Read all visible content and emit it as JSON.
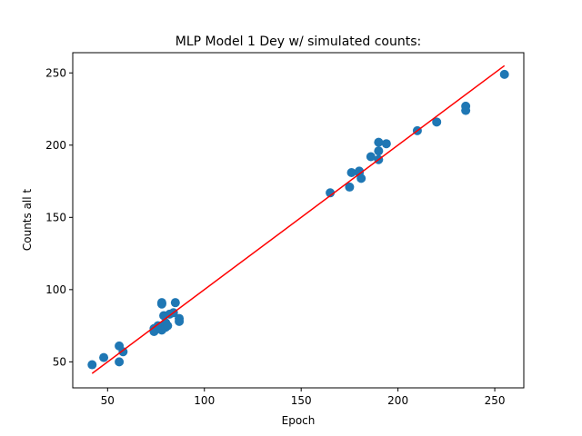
{
  "chart_data": {
    "type": "scatter",
    "title": "MLP Model 1 Dey w/ simulated counts:",
    "xlabel": "Epoch",
    "ylabel": "Counts all t",
    "xlim": [
      32,
      265
    ],
    "ylim": [
      32,
      264
    ],
    "xticks": [
      50,
      100,
      150,
      200,
      250
    ],
    "yticks": [
      50,
      100,
      150,
      200,
      250
    ],
    "grid": false,
    "colors": {
      "points": "#1f77b4",
      "fit_line": "#ff0000"
    },
    "points": [
      {
        "x": 42,
        "y": 48
      },
      {
        "x": 48,
        "y": 53
      },
      {
        "x": 56,
        "y": 61
      },
      {
        "x": 56,
        "y": 50
      },
      {
        "x": 58,
        "y": 57
      },
      {
        "x": 74,
        "y": 71
      },
      {
        "x": 74,
        "y": 73
      },
      {
        "x": 76,
        "y": 75
      },
      {
        "x": 78,
        "y": 90
      },
      {
        "x": 78,
        "y": 91
      },
      {
        "x": 78,
        "y": 72
      },
      {
        "x": 79,
        "y": 82
      },
      {
        "x": 80,
        "y": 74
      },
      {
        "x": 80,
        "y": 77
      },
      {
        "x": 81,
        "y": 75
      },
      {
        "x": 82,
        "y": 83
      },
      {
        "x": 84,
        "y": 84
      },
      {
        "x": 85,
        "y": 91
      },
      {
        "x": 87,
        "y": 78
      },
      {
        "x": 87,
        "y": 80
      },
      {
        "x": 165,
        "y": 167
      },
      {
        "x": 175,
        "y": 171
      },
      {
        "x": 176,
        "y": 181
      },
      {
        "x": 180,
        "y": 181
      },
      {
        "x": 180,
        "y": 182
      },
      {
        "x": 181,
        "y": 177
      },
      {
        "x": 186,
        "y": 192
      },
      {
        "x": 190,
        "y": 202
      },
      {
        "x": 190,
        "y": 196
      },
      {
        "x": 190,
        "y": 190
      },
      {
        "x": 194,
        "y": 201
      },
      {
        "x": 210,
        "y": 210
      },
      {
        "x": 220,
        "y": 216
      },
      {
        "x": 235,
        "y": 227
      },
      {
        "x": 235,
        "y": 224
      },
      {
        "x": 255,
        "y": 249
      }
    ],
    "fit_line": {
      "x": [
        42,
        255
      ],
      "y": [
        42,
        255
      ]
    }
  }
}
